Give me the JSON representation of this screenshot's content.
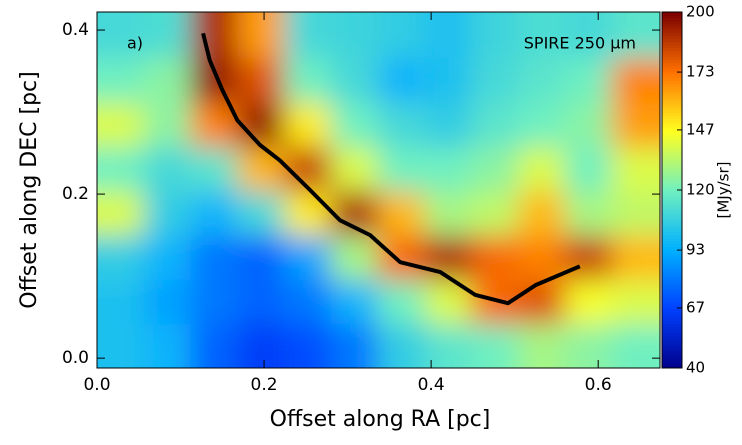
{
  "chart_data": {
    "type": "heatmap",
    "annotations": [
      "a)",
      "SPIRE 250 μm"
    ],
    "xlabel": "Offset along RA [pc]",
    "ylabel": "Offset along DEC [pc]",
    "colorbar_label": "[MJy/sr]",
    "xlim": [
      0,
      0.674
    ],
    "ylim": [
      -0.012,
      0.422
    ],
    "xticks": [
      {
        "value": 0,
        "label": "0.0"
      },
      {
        "value": 0.2,
        "label": "0.2"
      },
      {
        "value": 0.4,
        "label": "0.4"
      },
      {
        "value": 0.6,
        "label": "0.6"
      }
    ],
    "yticks": [
      {
        "value": 0,
        "label": "0.0"
      },
      {
        "value": 0.2,
        "label": "0.2"
      },
      {
        "value": 0.4,
        "label": "0.4"
      }
    ],
    "zlim": [
      40,
      200
    ],
    "zticks": [
      40,
      67,
      93,
      120,
      147,
      173,
      200
    ],
    "colorscale": [
      "#00008b",
      "#0040ff",
      "#00b0ff",
      "#70f0c0",
      "#ffff20",
      "#ff7000",
      "#7a0000"
    ],
    "xbins": [
      0,
      0.056,
      0.112,
      0.168,
      0.224,
      0.28,
      0.336,
      0.392,
      0.448,
      0.504,
      0.56,
      0.616,
      0.674
    ],
    "ybins": [
      -0.012,
      0.042,
      0.096,
      0.15,
      0.204,
      0.258,
      0.312,
      0.366,
      0.422
    ],
    "z": [
      [
        100,
        95,
        75,
        65,
        70,
        80,
        105,
        115,
        120,
        130,
        125,
        120
      ],
      [
        100,
        90,
        80,
        75,
        80,
        95,
        120,
        140,
        175,
        180,
        145,
        140
      ],
      [
        105,
        95,
        80,
        75,
        90,
        130,
        175,
        190,
        175,
        170,
        185,
        160
      ],
      [
        140,
        105,
        95,
        110,
        150,
        190,
        160,
        130,
        135,
        160,
        130,
        135
      ],
      [
        120,
        110,
        115,
        160,
        185,
        140,
        120,
        120,
        125,
        140,
        120,
        140
      ],
      [
        140,
        125,
        170,
        195,
        150,
        120,
        110,
        105,
        115,
        120,
        125,
        165
      ],
      [
        120,
        125,
        195,
        180,
        120,
        110,
        95,
        100,
        110,
        115,
        120,
        170
      ],
      [
        110,
        112,
        190,
        165,
        110,
        108,
        105,
        100,
        108,
        112,
        110,
        115
      ]
    ],
    "filament": {
      "color": "#000000",
      "x": [
        0.127,
        0.135,
        0.15,
        0.168,
        0.195,
        0.219,
        0.255,
        0.291,
        0.327,
        0.363,
        0.411,
        0.453,
        0.492,
        0.525,
        0.578
      ],
      "y": [
        0.396,
        0.363,
        0.327,
        0.29,
        0.26,
        0.241,
        0.205,
        0.168,
        0.15,
        0.117,
        0.105,
        0.077,
        0.067,
        0.089,
        0.112
      ]
    }
  }
}
